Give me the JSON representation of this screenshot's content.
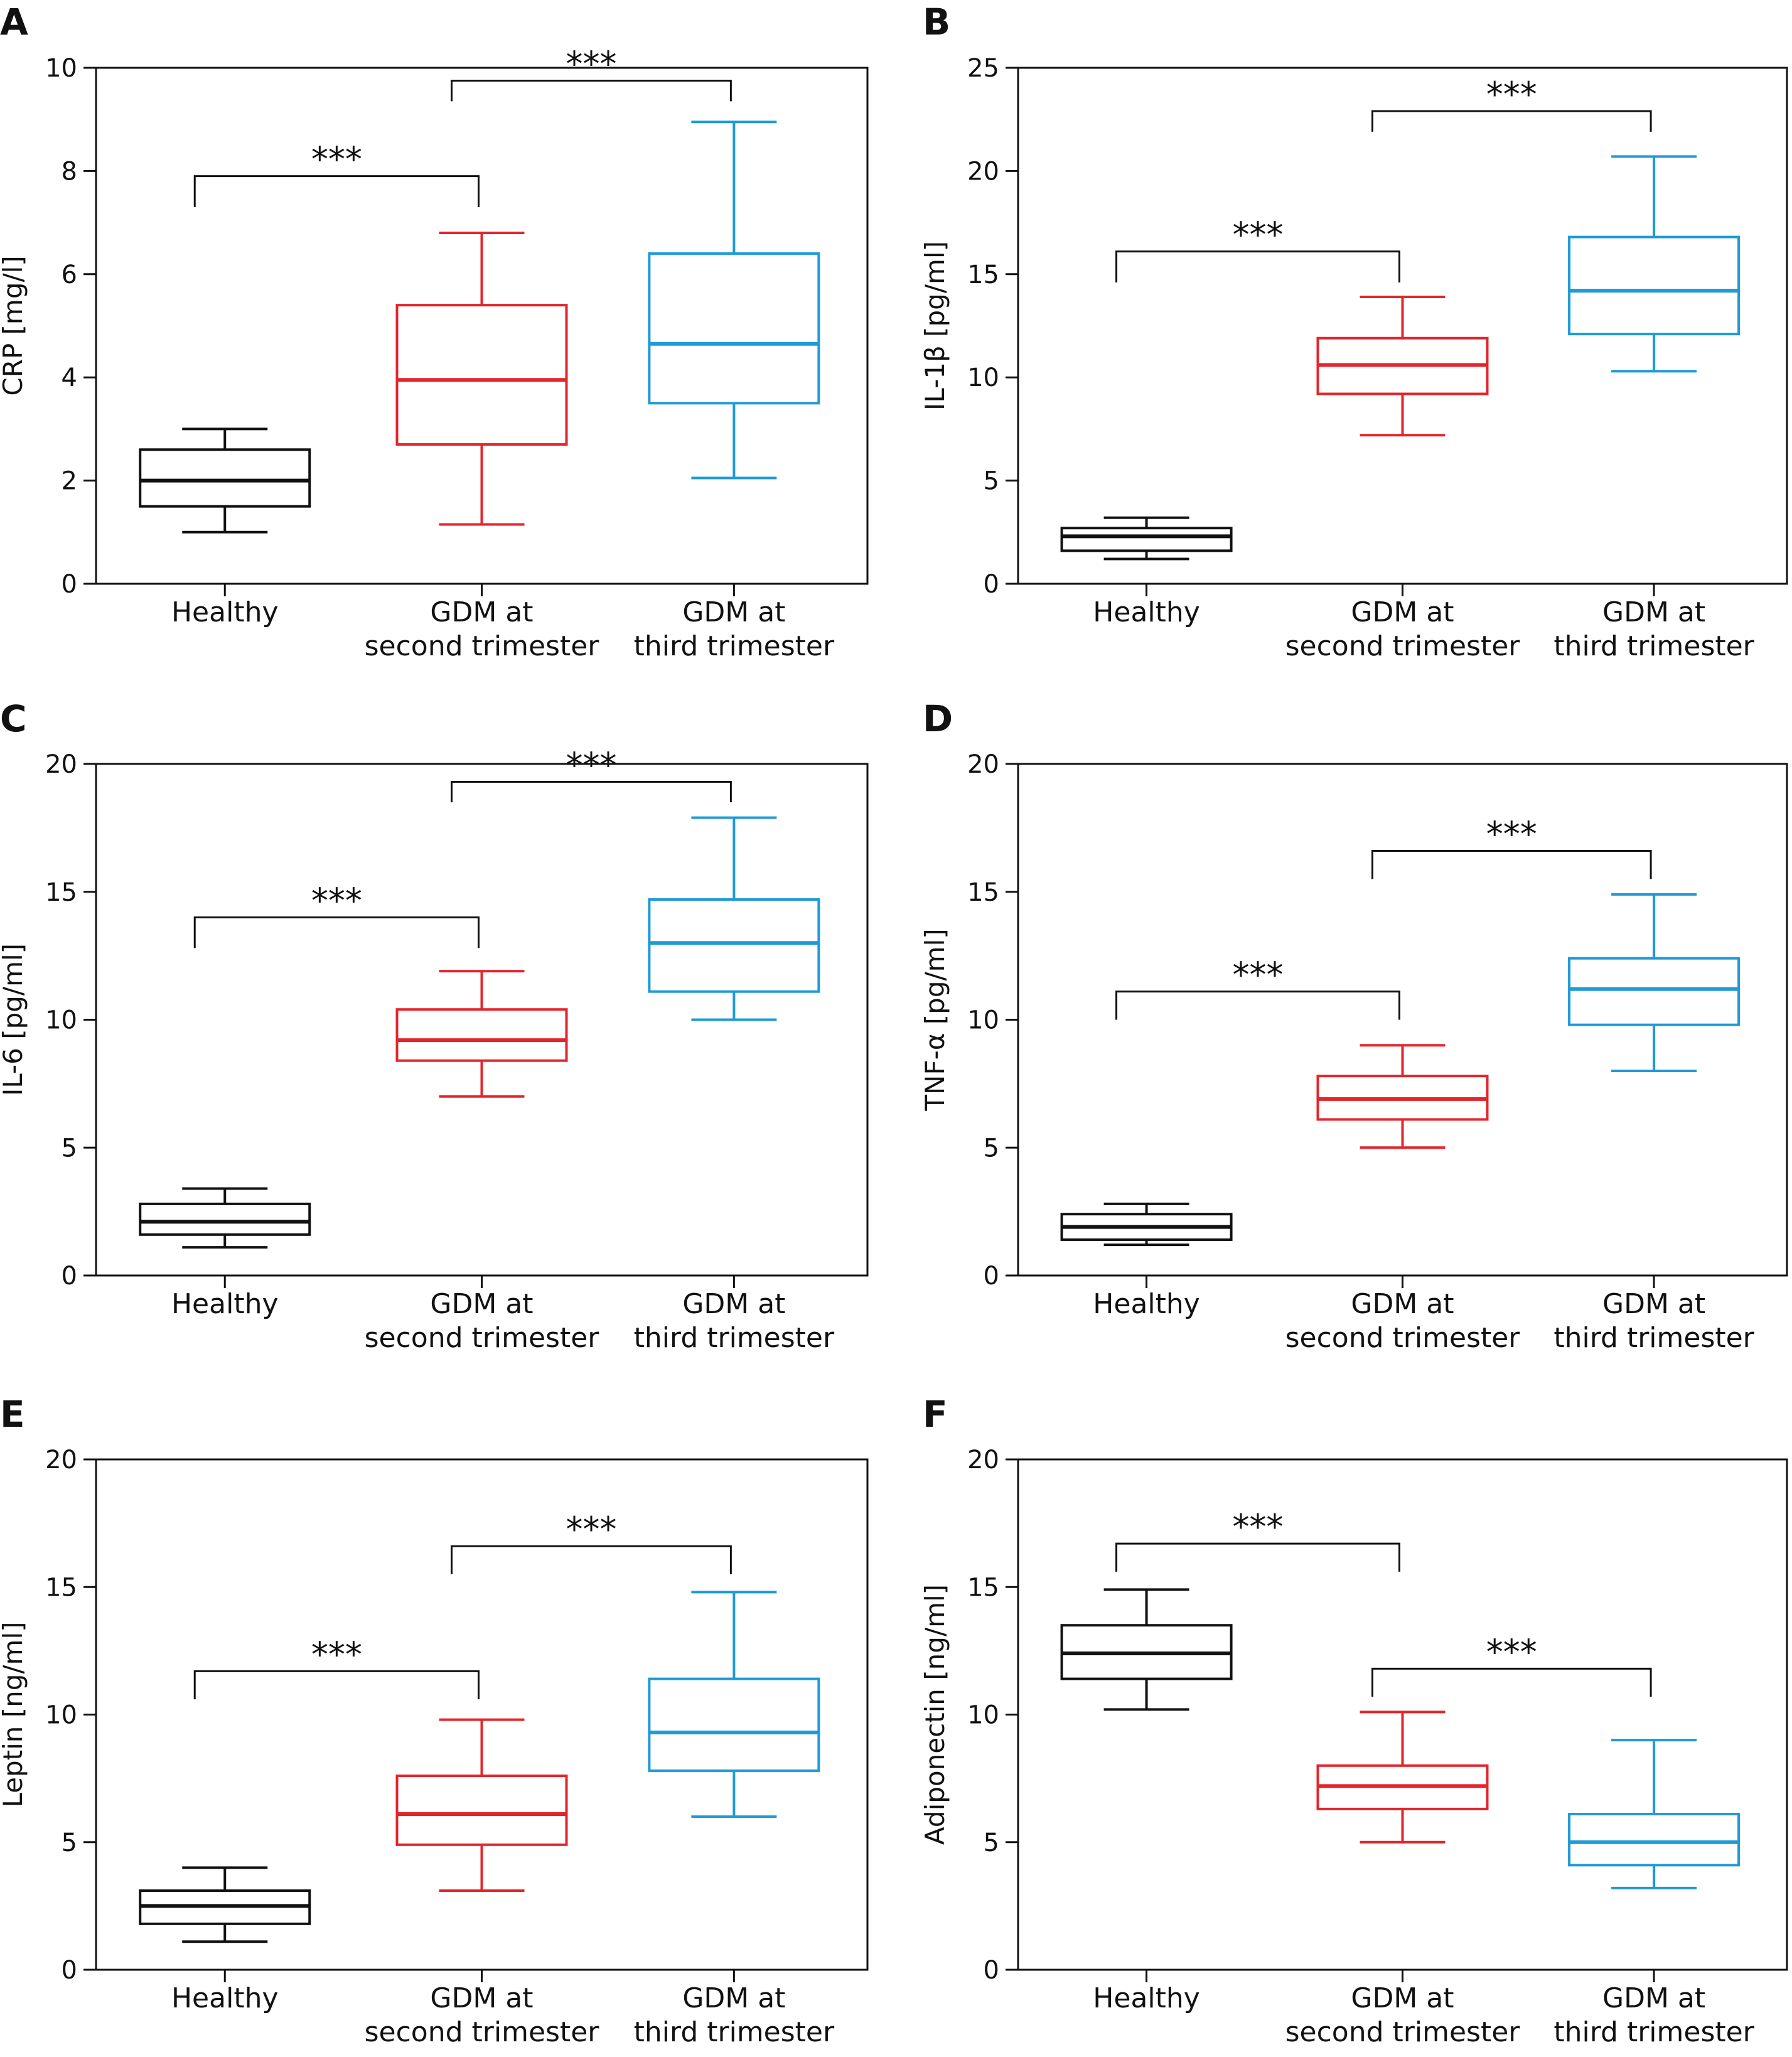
{
  "colors": {
    "healthy": "#111111",
    "second": "#e4242b",
    "third": "#1e9ad6",
    "axis": "#111111"
  },
  "chart_data": [
    {
      "panel": "A",
      "type": "box",
      "ylabel": "CRP [mg/l]",
      "ylim": [
        0,
        10
      ],
      "yticks": [
        "0",
        "2",
        "4",
        "6",
        "8",
        "10"
      ],
      "categories": [
        [
          "Healthy"
        ],
        [
          "GDM at",
          "second trimester"
        ],
        [
          "GDM at",
          "third trimester"
        ]
      ],
      "boxes": [
        {
          "min": 1.0,
          "q1": 1.5,
          "median": 2.0,
          "q3": 2.6,
          "max": 3.0
        },
        {
          "min": 1.15,
          "q1": 2.7,
          "median": 3.95,
          "q3": 5.4,
          "max": 6.8
        },
        {
          "min": 2.05,
          "q1": 3.5,
          "median": 4.65,
          "q3": 6.4,
          "max": 8.95
        }
      ],
      "significance": [
        {
          "from": 0,
          "to": 1,
          "label": "***",
          "y": 7.9,
          "drop": 0.6
        },
        {
          "from": 1,
          "to": 2,
          "label": "***",
          "y": 9.75,
          "drop": 0.4
        }
      ]
    },
    {
      "panel": "B",
      "type": "box",
      "ylabel": "IL-1β [pg/ml]",
      "ylim": [
        0,
        25
      ],
      "yticks": [
        "0",
        "5",
        "10",
        "15",
        "20",
        "25"
      ],
      "categories": [
        [
          "Healthy"
        ],
        [
          "GDM at",
          "second trimester"
        ],
        [
          "GDM at",
          "third trimester"
        ]
      ],
      "boxes": [
        {
          "min": 1.2,
          "q1": 1.6,
          "median": 2.3,
          "q3": 2.7,
          "max": 3.2
        },
        {
          "min": 7.2,
          "q1": 9.2,
          "median": 10.6,
          "q3": 11.9,
          "max": 13.9
        },
        {
          "min": 10.3,
          "q1": 12.1,
          "median": 14.2,
          "q3": 16.8,
          "max": 20.7
        }
      ],
      "significance": [
        {
          "from": 0,
          "to": 1,
          "label": "***",
          "y": 16.1,
          "drop": 1.5
        },
        {
          "from": 1,
          "to": 2,
          "label": "***",
          "y": 22.9,
          "drop": 1.0
        }
      ]
    },
    {
      "panel": "C",
      "type": "box",
      "ylabel": "IL-6 [pg/ml]",
      "ylim": [
        0,
        20
      ],
      "yticks": [
        "0",
        "5",
        "10",
        "15",
        "20"
      ],
      "categories": [
        [
          "Healthy"
        ],
        [
          "GDM at",
          "second trimester"
        ],
        [
          "GDM at",
          "third trimester"
        ]
      ],
      "boxes": [
        {
          "min": 1.1,
          "q1": 1.6,
          "median": 2.1,
          "q3": 2.8,
          "max": 3.4
        },
        {
          "min": 7.0,
          "q1": 8.4,
          "median": 9.2,
          "q3": 10.4,
          "max": 11.9
        },
        {
          "min": 10.0,
          "q1": 11.1,
          "median": 13.0,
          "q3": 14.7,
          "max": 17.9
        }
      ],
      "significance": [
        {
          "from": 0,
          "to": 1,
          "label": "***",
          "y": 14.0,
          "drop": 1.2
        },
        {
          "from": 1,
          "to": 2,
          "label": "***",
          "y": 19.3,
          "drop": 0.8
        }
      ]
    },
    {
      "panel": "D",
      "type": "box",
      "ylabel": "TNF-α [pg/ml]",
      "ylim": [
        0,
        20
      ],
      "yticks": [
        "0",
        "5",
        "10",
        "15",
        "20"
      ],
      "categories": [
        [
          "Healthy"
        ],
        [
          "GDM at",
          "second trimester"
        ],
        [
          "GDM at",
          "third trimester"
        ]
      ],
      "boxes": [
        {
          "min": 1.2,
          "q1": 1.4,
          "median": 1.9,
          "q3": 2.4,
          "max": 2.8
        },
        {
          "min": 5.0,
          "q1": 6.1,
          "median": 6.9,
          "q3": 7.8,
          "max": 9.0
        },
        {
          "min": 8.0,
          "q1": 9.8,
          "median": 11.2,
          "q3": 12.4,
          "max": 14.9
        }
      ],
      "significance": [
        {
          "from": 0,
          "to": 1,
          "label": "***",
          "y": 11.1,
          "drop": 1.1
        },
        {
          "from": 1,
          "to": 2,
          "label": "***",
          "y": 16.6,
          "drop": 1.1
        }
      ]
    },
    {
      "panel": "E",
      "type": "box",
      "ylabel": "Leptin [ng/ml]",
      "ylim": [
        0,
        20
      ],
      "yticks": [
        "0",
        "5",
        "10",
        "15",
        "20"
      ],
      "categories": [
        [
          "Healthy"
        ],
        [
          "GDM at",
          "second trimester"
        ],
        [
          "GDM at",
          "third trimester"
        ]
      ],
      "boxes": [
        {
          "min": 1.1,
          "q1": 1.8,
          "median": 2.5,
          "q3": 3.1,
          "max": 4.0
        },
        {
          "min": 3.1,
          "q1": 4.9,
          "median": 6.1,
          "q3": 7.6,
          "max": 9.8
        },
        {
          "min": 6.0,
          "q1": 7.8,
          "median": 9.3,
          "q3": 11.4,
          "max": 14.8
        }
      ],
      "significance": [
        {
          "from": 0,
          "to": 1,
          "label": "***",
          "y": 11.7,
          "drop": 1.1
        },
        {
          "from": 1,
          "to": 2,
          "label": "***",
          "y": 16.6,
          "drop": 1.1
        }
      ]
    },
    {
      "panel": "F",
      "type": "box",
      "ylabel": "Adiponectin [ng/ml]",
      "ylim": [
        0,
        20
      ],
      "yticks": [
        "0",
        "5",
        "10",
        "15",
        "20"
      ],
      "categories": [
        [
          "Healthy"
        ],
        [
          "GDM at",
          "second trimester"
        ],
        [
          "GDM at",
          "third trimester"
        ]
      ],
      "boxes": [
        {
          "min": 10.2,
          "q1": 11.4,
          "median": 12.4,
          "q3": 13.5,
          "max": 14.9
        },
        {
          "min": 5.0,
          "q1": 6.3,
          "median": 7.2,
          "q3": 8.0,
          "max": 10.1
        },
        {
          "min": 3.2,
          "q1": 4.1,
          "median": 5.0,
          "q3": 6.1,
          "max": 9.0
        }
      ],
      "significance": [
        {
          "from": 0,
          "to": 1,
          "label": "***",
          "y": 16.7,
          "drop": 1.1
        },
        {
          "from": 1,
          "to": 2,
          "label": "***",
          "y": 11.8,
          "drop": 1.1
        }
      ]
    }
  ]
}
